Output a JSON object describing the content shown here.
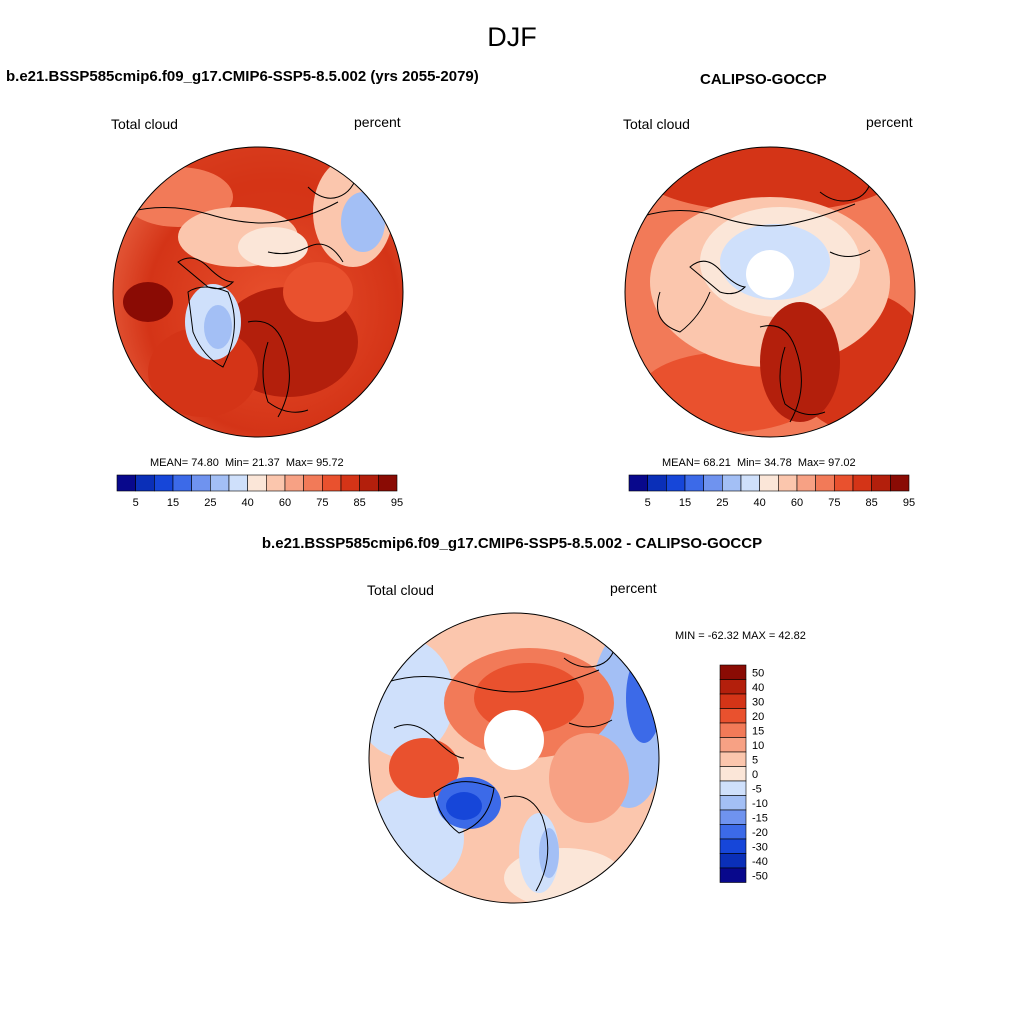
{
  "page": {
    "title": "DJF"
  },
  "panels": [
    {
      "title": "b.e21.BSSP585cmip6.f09_g17.CMIP6-SSP5-8.5.002 (yrs 2055-2079)",
      "left_label": "Total cloud",
      "right_label": "percent",
      "stats": {
        "mean_label": "MEAN=",
        "mean": "74.80",
        "min_label": "Min=",
        "min": "21.37",
        "max_label": "Max=",
        "max": "95.72"
      }
    },
    {
      "title": "CALIPSO-GOCCP",
      "left_label": "Total cloud",
      "right_label": "percent",
      "stats": {
        "mean_label": "MEAN=",
        "mean": "68.21",
        "min_label": "Min=",
        "min": "34.78",
        "max_label": "Max=",
        "max": "97.02"
      }
    },
    {
      "title": "b.e21.BSSP585cmip6.f09_g17.CMIP6-SSP5-8.5.002 - CALIPSO-GOCCP",
      "left_label": "Total cloud",
      "right_label": "percent",
      "stats_line": "MIN = -62.32 MAX =  42.82"
    }
  ],
  "colorbar_abs": {
    "colors": [
      "#08088c",
      "#0a2fb8",
      "#1646d9",
      "#3c6ae8",
      "#6f93ef",
      "#a3bff5",
      "#cfe0fb",
      "#fbe6d8",
      "#fbc6ad",
      "#f7a184",
      "#f27a58",
      "#e9512e",
      "#d43417",
      "#b31f0c",
      "#8a0b04"
    ],
    "tick_labels": [
      "5",
      "15",
      "25",
      "40",
      "60",
      "75",
      "85",
      "95"
    ]
  },
  "colorbar_diff": {
    "colors": [
      "#8a0b04",
      "#b31f0c",
      "#d43417",
      "#e9512e",
      "#f27a58",
      "#f7a184",
      "#fbc6ad",
      "#fbe6d8",
      "#cfe0fb",
      "#a3bff5",
      "#6f93ef",
      "#3c6ae8",
      "#1646d9",
      "#0a2fb8",
      "#08088c"
    ],
    "tick_labels": [
      "50",
      "40",
      "30",
      "20",
      "15",
      "10",
      "5",
      "0",
      "-5",
      "-10",
      "-15",
      "-20",
      "-30",
      "-40",
      "-50"
    ]
  },
  "map_palette": {
    "land": "#1a1a1a",
    "coast": "#000000"
  }
}
